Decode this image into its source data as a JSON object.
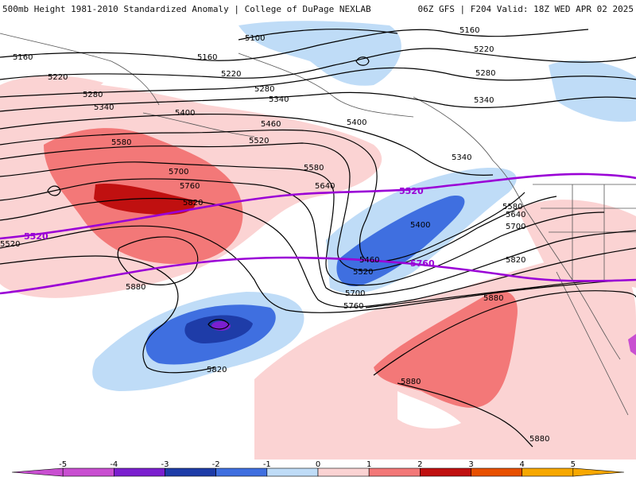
{
  "header": {
    "title_left": "500mb Height 1981-2010 Standardized Anomaly | College of DuPage NEXLAB",
    "title_right": "06Z GFS | F204 Valid: 18Z WED APR 02 2025"
  },
  "colors": {
    "anom_neg_5": "#c94fd1",
    "anom_neg_4": "#7b1fcf",
    "anom_neg_3": "#1e3ca8",
    "anom_neg_2": "#3f6fe0",
    "anom_neg_1": "#bfdcf7",
    "anom_pos_1": "#fbd3d3",
    "anom_pos_2": "#f37878",
    "anom_pos_3": "#c01010",
    "anom_pos_4": "#e85000",
    "anom_pos_5": "#f7a800",
    "height_contour": "#000000",
    "highlight_contour": "#9a00d6",
    "land_border": "#555555"
  },
  "contour_labels": [
    {
      "id": "c1",
      "text": "5100"
    },
    {
      "id": "c2",
      "text": "5160"
    },
    {
      "id": "c3",
      "text": "5160"
    },
    {
      "id": "c4",
      "text": "5160"
    },
    {
      "id": "c5",
      "text": "5220"
    },
    {
      "id": "c6",
      "text": "5220"
    },
    {
      "id": "c7",
      "text": "5220"
    },
    {
      "id": "c8",
      "text": "5280"
    },
    {
      "id": "c9",
      "text": "5280"
    },
    {
      "id": "c10",
      "text": "5280"
    },
    {
      "id": "c11",
      "text": "5340"
    },
    {
      "id": "c12",
      "text": "5340"
    },
    {
      "id": "c13",
      "text": "5340"
    },
    {
      "id": "c14",
      "text": "5340"
    },
    {
      "id": "c15",
      "text": "5400"
    },
    {
      "id": "c16",
      "text": "5400"
    },
    {
      "id": "c17",
      "text": "5400"
    },
    {
      "id": "c18",
      "text": "5460"
    },
    {
      "id": "c19",
      "text": "5460"
    },
    {
      "id": "c20",
      "text": "5520"
    },
    {
      "id": "c21",
      "text": "5520"
    },
    {
      "id": "c22",
      "text": "5520"
    },
    {
      "id": "c23",
      "text": "5580"
    },
    {
      "id": "c24",
      "text": "5580"
    },
    {
      "id": "c25",
      "text": "5580"
    },
    {
      "id": "c26",
      "text": "5640"
    },
    {
      "id": "c27",
      "text": "5640"
    },
    {
      "id": "c28",
      "text": "5700"
    },
    {
      "id": "c29",
      "text": "5700"
    },
    {
      "id": "c30",
      "text": "5700"
    },
    {
      "id": "c31",
      "text": "5760"
    },
    {
      "id": "c32",
      "text": "5760"
    },
    {
      "id": "c33",
      "text": "5820"
    },
    {
      "id": "c34",
      "text": "5820"
    },
    {
      "id": "c35",
      "text": "5820"
    },
    {
      "id": "c36",
      "text": "5880"
    },
    {
      "id": "c37",
      "text": "5880"
    },
    {
      "id": "c38",
      "text": "5880"
    },
    {
      "id": "c39",
      "text": "5880"
    }
  ],
  "highlight_labels": [
    {
      "id": "p1",
      "text": "5520"
    },
    {
      "id": "p2",
      "text": "5520"
    },
    {
      "id": "p3",
      "text": "5760"
    }
  ],
  "legend": {
    "ticks": [
      "-5",
      "-4",
      "-3",
      "-2",
      "-1",
      "0",
      "1",
      "2",
      "3",
      "4",
      "5"
    ]
  }
}
